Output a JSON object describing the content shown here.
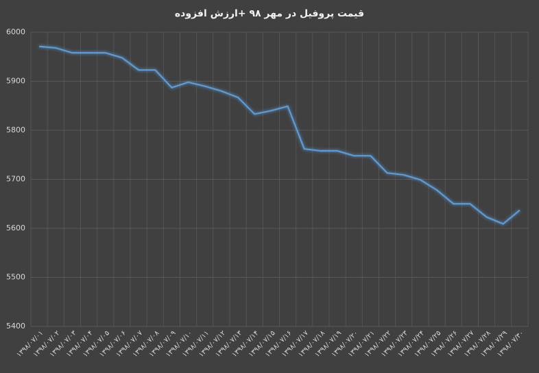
{
  "chart_data": {
    "type": "line",
    "title": "قیمت پروفیل در مهر ۹۸ +ارزش افزوده",
    "categories": [
      "۱۳۹۸/۰۷/۰۱",
      "۱۳۹۸/۰۷/۰۲",
      "۱۳۹۸/۰۷/۰۳",
      "۱۳۹۸/۰۷/۰۴",
      "۱۳۹۸/۰۷/۰۵",
      "۱۳۹۸/۰۷/۰۶",
      "۱۳۹۸/۰۷/۰۷",
      "۱۳۹۸/۰۷/۰۸",
      "۱۳۹۸/۰۷/۰۹",
      "۱۳۹۸/۰۷/۱۰",
      "۱۳۹۸/۰۷/۱۱",
      "۱۳۹۸/۰۷/۱۲",
      "۱۳۹۸/۰۷/۱۳",
      "۱۳۹۸/۰۷/۱۴",
      "۱۳۹۸/۰۷/۱۵",
      "۱۳۹۸/۰۷/۱۶",
      "۱۳۹۸/۰۷/۱۷",
      "۱۳۹۸/۰۷/۱۸",
      "۱۳۹۸/۰۷/۱۹",
      "۱۳۹۸/۰۷/۲۰",
      "۱۳۹۸/۰۷/۲۱",
      "۱۳۹۸/۰۷/۲۲",
      "۱۳۹۸/۰۷/۲۳",
      "۱۳۹۸/۰۷/۲۴",
      "۱۳۹۸/۰۷/۲۵",
      "۱۳۹۸/۰۷/۲۶",
      "۱۳۹۸/۰۷/۲۷",
      "۱۳۹۸/۰۷/۲۸",
      "۱۳۹۸/۰۷/۲۹",
      "۱۳۹۸/۰۷/۳۰"
    ],
    "values": [
      5971,
      5968,
      5958,
      5958,
      5958,
      5948,
      5923,
      5923,
      5887,
      5898,
      5890,
      5880,
      5867,
      5833,
      5840,
      5849,
      5762,
      5758,
      5758,
      5748,
      5748,
      5713,
      5709,
      5699,
      5678,
      5650,
      5650,
      5623,
      5609,
      5637
    ],
    "color": "#5b9bd5",
    "ylim": [
      5400,
      6000
    ],
    "yticks": [
      5400,
      5500,
      5600,
      5700,
      5800,
      5900,
      6000
    ],
    "grid": true
  }
}
